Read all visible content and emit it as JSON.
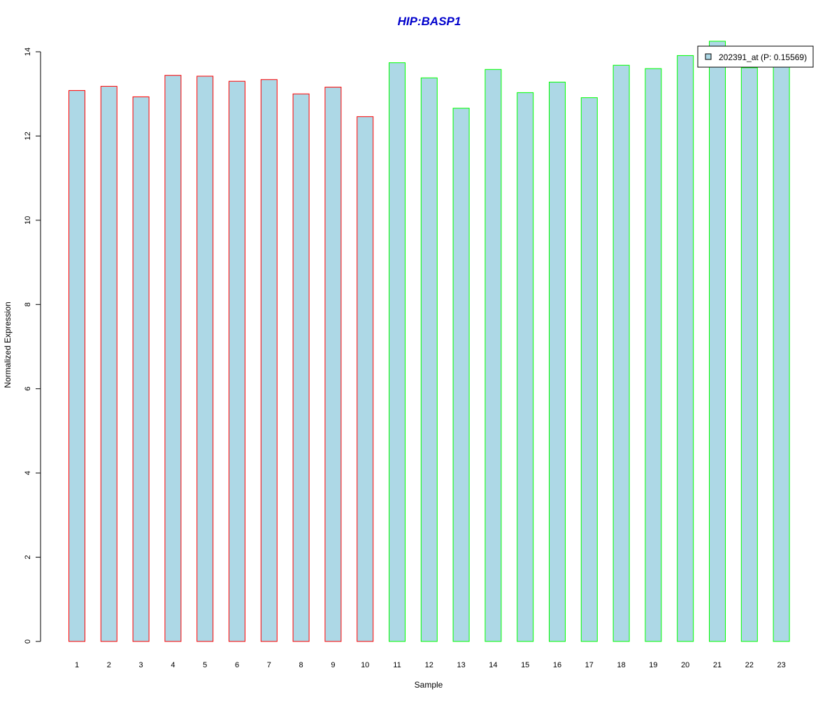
{
  "chart_data": {
    "type": "bar",
    "title": "HIP:BASP1",
    "title_color": "#0000CC",
    "xlabel": "Sample",
    "ylabel": "Normalized Expression",
    "categories": [
      "1",
      "2",
      "3",
      "4",
      "5",
      "6",
      "7",
      "8",
      "9",
      "10",
      "11",
      "12",
      "13",
      "14",
      "15",
      "16",
      "17",
      "18",
      "19",
      "20",
      "21",
      "22",
      "23"
    ],
    "series": [
      {
        "name": "202391_at (P: 0.15569)",
        "fill": "#ADD8E6",
        "values": [
          13.08,
          13.18,
          12.93,
          13.44,
          13.42,
          13.3,
          13.34,
          13.0,
          13.16,
          12.46,
          13.74,
          13.38,
          12.66,
          13.58,
          13.03,
          13.28,
          12.91,
          13.68,
          13.6,
          13.91,
          14.25,
          13.62,
          13.7
        ]
      }
    ],
    "group_border_colors": [
      "#FF0000",
      "#FF0000",
      "#FF0000",
      "#FF0000",
      "#FF0000",
      "#FF0000",
      "#FF0000",
      "#FF0000",
      "#FF0000",
      "#FF0000",
      "#00FF00",
      "#00FF00",
      "#00FF00",
      "#00FF00",
      "#00FF00",
      "#00FF00",
      "#00FF00",
      "#00FF00",
      "#00FF00",
      "#00FF00",
      "#00FF00",
      "#00FF00",
      "#00FF00"
    ],
    "yticks": [
      "0",
      "2",
      "4",
      "6",
      "8",
      "10",
      "12",
      "14"
    ],
    "ylim": [
      0,
      14
    ],
    "grid": false,
    "legend_position": "top-right",
    "legend_label": "202391_at (P: 0.15569)"
  }
}
